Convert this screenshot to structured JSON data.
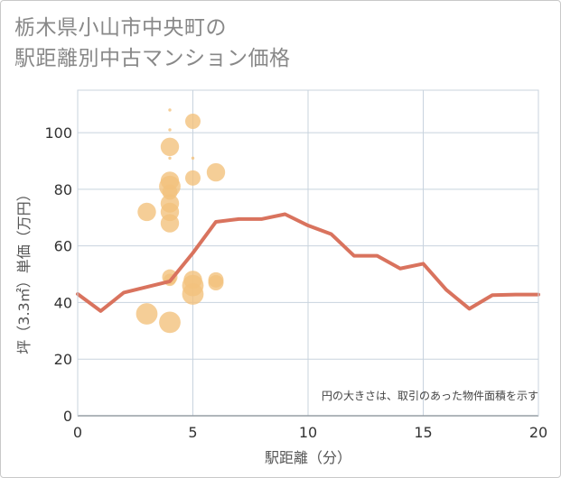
{
  "title": {
    "line1": "栃木県小山市中央町の",
    "line2": "駅距離別中古マンション価格"
  },
  "colors": {
    "line": "#d9735e",
    "bubble": "#f3c27d",
    "grid": "#c8d3de",
    "axis": "#333333"
  },
  "chart_data": {
    "type": "scatter",
    "title": "栃木県小山市中央町の駅距離別中古マンション価格",
    "xlabel": "駅距離（分）",
    "ylabel": "坪（3.3㎡）単価（万円）",
    "xlim": [
      0,
      20
    ],
    "ylim": [
      0,
      115
    ],
    "xticks": [
      "0",
      "5",
      "10",
      "15",
      "20"
    ],
    "yticks": [
      "0",
      "20",
      "40",
      "60",
      "80",
      "100"
    ],
    "xtick_values": [
      0,
      5,
      10,
      15,
      20
    ],
    "ytick_values": [
      0,
      20,
      40,
      60,
      80,
      100
    ],
    "grid": true,
    "note": "円の大きさは、取引のあった物件面積を示す",
    "series": [
      {
        "name": "bubbles",
        "kind": "bubble",
        "points": [
          {
            "x": 3,
            "y": 72,
            "size": 3
          },
          {
            "x": 3,
            "y": 36,
            "size": 3.5
          },
          {
            "x": 4,
            "y": 108,
            "size": 0.5
          },
          {
            "x": 4,
            "y": 101,
            "size": 0.5
          },
          {
            "x": 4,
            "y": 95,
            "size": 3
          },
          {
            "x": 4,
            "y": 91,
            "size": 0.5
          },
          {
            "x": 4,
            "y": 83,
            "size": 3
          },
          {
            "x": 4,
            "y": 81,
            "size": 3.5
          },
          {
            "x": 4,
            "y": 79,
            "size": 2.5
          },
          {
            "x": 4,
            "y": 75,
            "size": 3
          },
          {
            "x": 4,
            "y": 72,
            "size": 3
          },
          {
            "x": 4,
            "y": 68,
            "size": 3
          },
          {
            "x": 4,
            "y": 49,
            "size": 2.5
          },
          {
            "x": 4,
            "y": 48,
            "size": 2
          },
          {
            "x": 4,
            "y": 33,
            "size": 3.5
          },
          {
            "x": 5,
            "y": 104,
            "size": 2.5
          },
          {
            "x": 5,
            "y": 91,
            "size": 0.5
          },
          {
            "x": 5,
            "y": 84,
            "size": 2.5
          },
          {
            "x": 5,
            "y": 48,
            "size": 3
          },
          {
            "x": 5,
            "y": 46,
            "size": 3.5
          },
          {
            "x": 5,
            "y": 43,
            "size": 3.5
          },
          {
            "x": 6,
            "y": 86,
            "size": 3
          },
          {
            "x": 6,
            "y": 48,
            "size": 2.5
          },
          {
            "x": 6,
            "y": 47,
            "size": 2.5
          }
        ]
      },
      {
        "name": "average",
        "kind": "line",
        "x": [
          0,
          1,
          2,
          3,
          4,
          5,
          6,
          7,
          8,
          9,
          10,
          11,
          12,
          13,
          14,
          15,
          16,
          17,
          18,
          19,
          20
        ],
        "values": [
          43,
          37,
          43.5,
          45.5,
          47.5,
          57.5,
          68.5,
          69.5,
          69.5,
          71.2,
          67.2,
          64.2,
          56.5,
          56.5,
          52,
          53.7,
          44.5,
          37.8,
          42.6,
          42.8,
          42.8
        ]
      }
    ]
  }
}
